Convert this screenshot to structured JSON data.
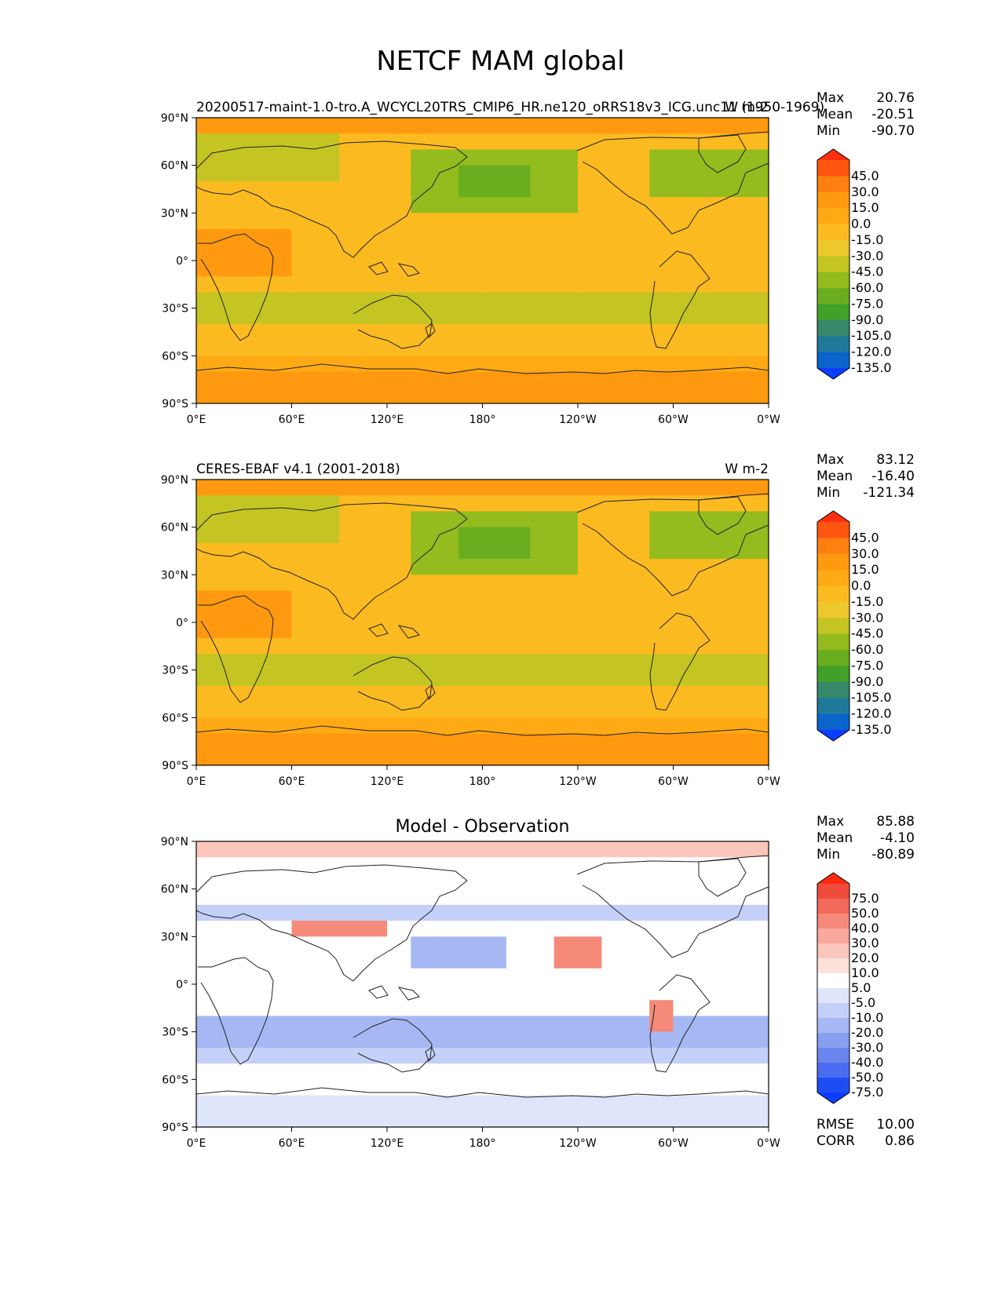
{
  "title": "NETCF MAM global",
  "axes": {
    "lat_ticks": [
      "90°N",
      "60°N",
      "30°N",
      "0°",
      "30°S",
      "60°S",
      "90°S"
    ],
    "lon_ticks": [
      "0°E",
      "60°E",
      "120°E",
      "180°",
      "120°W",
      "60°W",
      "0°W"
    ]
  },
  "panels": [
    {
      "left_title": "20200517-maint-1.0-tro.A_WCYCL20TRS_CMIP6_HR.ne120_oRRS18v3_ICG.unc11 (1950-1969)",
      "right_title": "W m-2",
      "center_title": "",
      "stats": [
        {
          "label": "Max",
          "value": "20.76"
        },
        {
          "label": "Mean",
          "value": "-20.51"
        },
        {
          "label": "Min",
          "value": "-90.70"
        }
      ],
      "colorbar_labels": [
        "45.0",
        "30.0",
        "15.0",
        "0.0",
        "-15.0",
        "-30.0",
        "-45.0",
        "-60.0",
        "-75.0",
        "-90.0",
        "-105.0",
        "-120.0",
        "-135.0"
      ],
      "colorbar_colors": [
        "#ff3010",
        "#ff5510",
        "#ff7f10",
        "#ff9a10",
        "#ffaa15",
        "#fbbb20",
        "#ecc82c",
        "#c4c522",
        "#94bc1e",
        "#6aae20",
        "#40a028",
        "#35896a",
        "#1f7a9a",
        "#0a64cc",
        "#0b3dff"
      ]
    },
    {
      "left_title": "CERES-EBAF v4.1 (2001-2018)",
      "right_title": "W m-2",
      "center_title": "",
      "stats": [
        {
          "label": "Max",
          "value": "83.12"
        },
        {
          "label": "Mean",
          "value": "-16.40"
        },
        {
          "label": "Min",
          "value": "-121.34"
        }
      ],
      "colorbar_labels": [
        "45.0",
        "30.0",
        "15.0",
        "0.0",
        "-15.0",
        "-30.0",
        "-45.0",
        "-60.0",
        "-75.0",
        "-90.0",
        "-105.0",
        "-120.0",
        "-135.0"
      ],
      "colorbar_colors": [
        "#ff3010",
        "#ff5510",
        "#ff7f10",
        "#ff9a10",
        "#ffaa15",
        "#fbbb20",
        "#ecc82c",
        "#c4c522",
        "#94bc1e",
        "#6aae20",
        "#40a028",
        "#35896a",
        "#1f7a9a",
        "#0a64cc",
        "#0b3dff"
      ]
    },
    {
      "left_title": "",
      "right_title": "",
      "center_title": "Model - Observation",
      "stats": [
        {
          "label": "Max",
          "value": "85.88"
        },
        {
          "label": "Mean",
          "value": "-4.10"
        },
        {
          "label": "Min",
          "value": "-80.89"
        }
      ],
      "colorbar_labels": [
        "75.0",
        "50.0",
        "40.0",
        "30.0",
        "20.0",
        "10.0",
        "5.0",
        "-5.0",
        "-10.0",
        "-20.0",
        "-30.0",
        "-40.0",
        "-50.0",
        "-75.0"
      ],
      "colorbar_colors": [
        "#ff2a10",
        "#f04a3a",
        "#f26a5a",
        "#f58a7a",
        "#f8a99c",
        "#fbc6bc",
        "#fde2dc",
        "#ffffff",
        "#dfe6fb",
        "#c4d0f7",
        "#a6b8f3",
        "#889ff0",
        "#6a86ee",
        "#4a6cf0",
        "#1e4df5",
        "#0b3dff"
      ],
      "metrics": [
        {
          "label": "RMSE",
          "value": "10.00"
        },
        {
          "label": "CORR",
          "value": "0.86"
        }
      ]
    }
  ]
}
